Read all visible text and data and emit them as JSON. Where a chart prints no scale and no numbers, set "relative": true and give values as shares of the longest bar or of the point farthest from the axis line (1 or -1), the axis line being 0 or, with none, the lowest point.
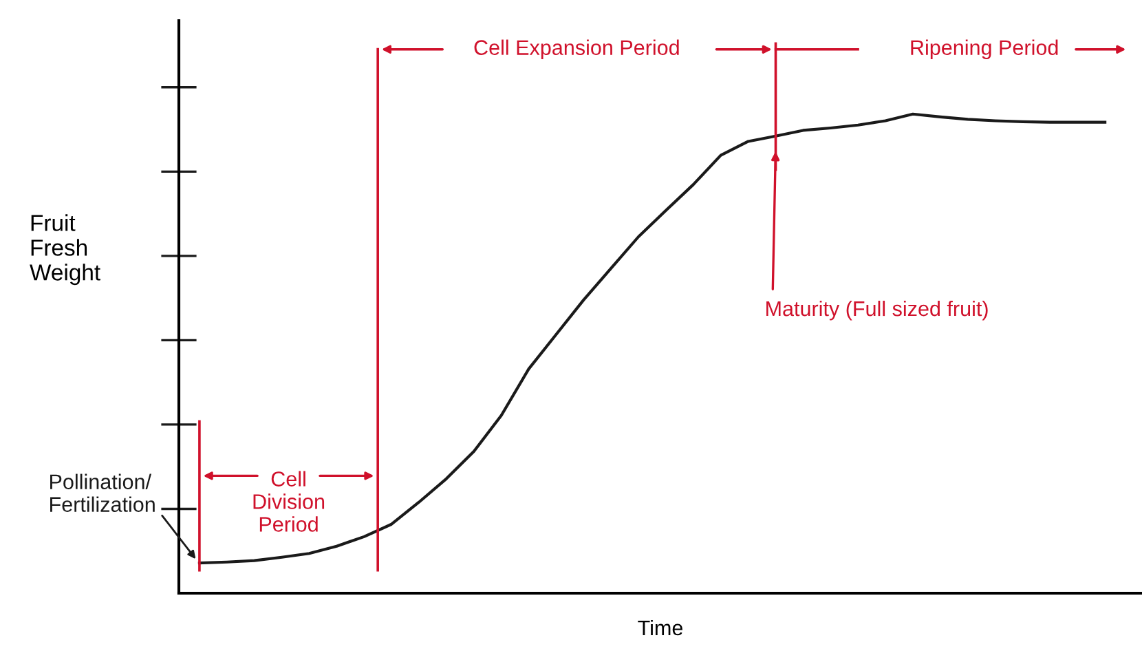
{
  "chart_data": {
    "type": "line",
    "relative": true,
    "xlabel": "Time",
    "ylabel": "Fruit\nFresh\nWeight",
    "categories": [
      null,
      null,
      null,
      null,
      null,
      null,
      null,
      null,
      null,
      null,
      null,
      null,
      null,
      null,
      null,
      null,
      null,
      null,
      null,
      null,
      null,
      null,
      null,
      null,
      null,
      null,
      null,
      null,
      null,
      null,
      null,
      null,
      null,
      null
    ],
    "series": [
      {
        "color": "#1a1a1a",
        "values": [
          0.063,
          0.065,
          0.068,
          0.075,
          0.083,
          0.098,
          0.118,
          0.144,
          0.19,
          0.239,
          0.296,
          0.371,
          0.468,
          0.54,
          0.612,
          0.678,
          0.744,
          0.799,
          0.853,
          0.914,
          0.943,
          0.954,
          0.966,
          0.971,
          0.977,
          0.986,
          1.0,
          0.994,
          0.989,
          0.986,
          0.984,
          0.983,
          0.983,
          0.983
        ]
      }
    ],
    "annotations": [
      "Cell\nDivision\nPeriod",
      "Cell Expansion Period",
      "Ripening Period",
      "Maturity (Full sized fruit)",
      "Pollination/\nFertilization"
    ],
    "marker": "none",
    "line_style": "solid"
  }
}
